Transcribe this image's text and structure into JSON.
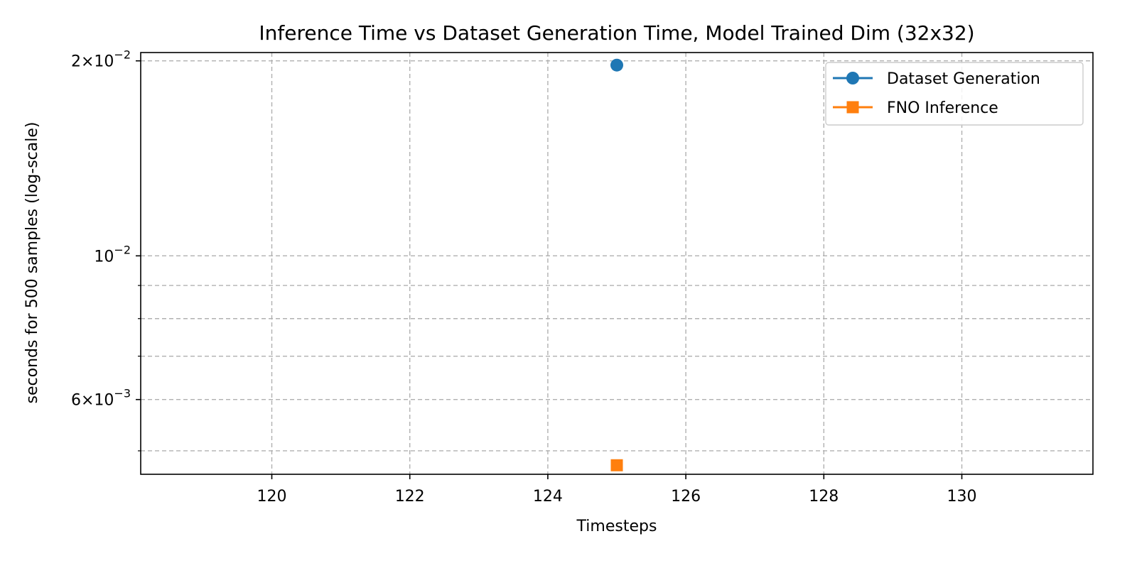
{
  "chart_data": {
    "type": "scatter",
    "title": "Inference Time vs Dataset Generation Time, Model Trained Dim (32x32)",
    "xlabel": "Timesteps",
    "ylabel": "seconds for 500 samples (log-scale)",
    "xlim": [
      118.1,
      131.9
    ],
    "ylim": [
      0.0046,
      0.0206
    ],
    "yscale": "log",
    "grid": true,
    "legend_position": "top-right",
    "x_ticks": [
      120,
      122,
      124,
      126,
      128,
      130
    ],
    "y_major_ticks": [
      {
        "value": 0.02,
        "base": "2",
        "exp": "−2",
        "kind": "mantissa"
      },
      {
        "value": 0.01,
        "base": "10",
        "exp": "−2",
        "kind": "power"
      },
      {
        "value": 0.006,
        "base": "6",
        "exp": "−3",
        "kind": "mantissa"
      }
    ],
    "y_minor_ticks": [
      0.005,
      0.007,
      0.008,
      0.009
    ],
    "series": [
      {
        "name": "Dataset Generation",
        "x": [
          125
        ],
        "y": [
          0.0197
        ],
        "color": "#1f77b4",
        "marker": "circle"
      },
      {
        "name": "FNO Inference",
        "x": [
          125
        ],
        "y": [
          0.00475
        ],
        "color": "#ff7f0e",
        "marker": "square"
      }
    ]
  }
}
